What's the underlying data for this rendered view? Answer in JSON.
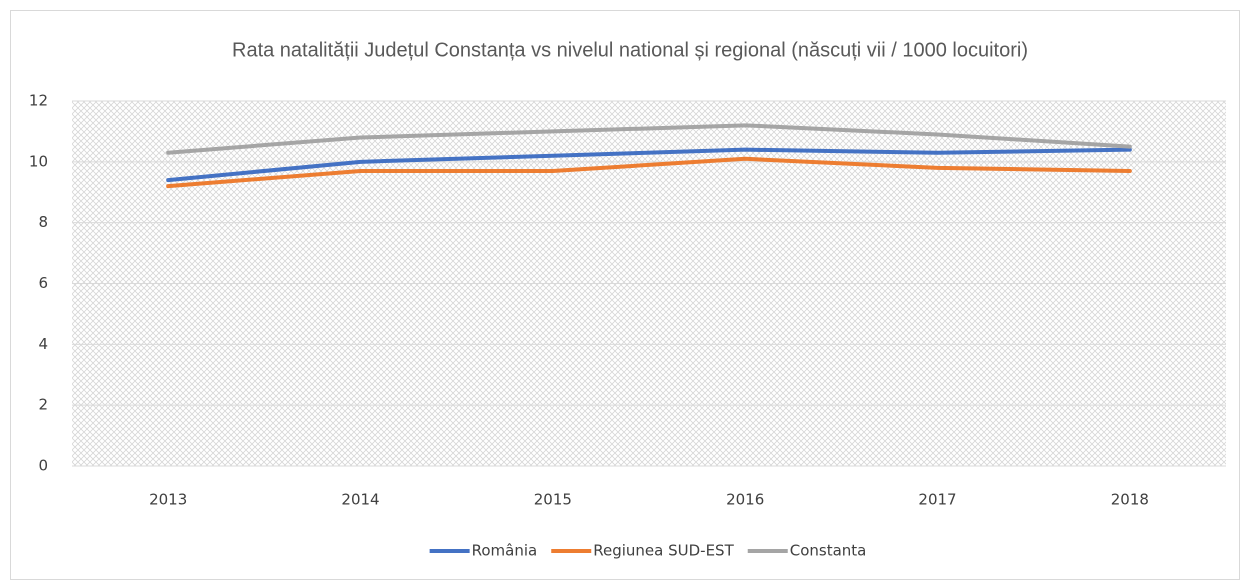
{
  "chart_data": {
    "type": "line",
    "title": "Rata natalității Județul Constanța vs nivelul national și regional (născuți vii / 1000 locuitori)",
    "categories": [
      "2013",
      "2014",
      "2015",
      "2016",
      "2017",
      "2018"
    ],
    "series": [
      {
        "name": "România",
        "color": "#4472c4",
        "values": [
          9.4,
          10.0,
          10.2,
          10.4,
          10.3,
          10.4
        ]
      },
      {
        "name": "Regiunea SUD-EST",
        "color": "#ed7d31",
        "values": [
          9.2,
          9.7,
          9.7,
          10.1,
          9.8,
          9.7
        ]
      },
      {
        "name": "Constanta",
        "color": "#a5a5a5",
        "values": [
          10.3,
          10.8,
          11.0,
          11.2,
          10.9,
          10.5
        ]
      }
    ],
    "ylim": [
      0,
      12
    ],
    "yticks": [
      0,
      2,
      4,
      6,
      8,
      10,
      12
    ],
    "grid": true,
    "legend": "bottom"
  }
}
